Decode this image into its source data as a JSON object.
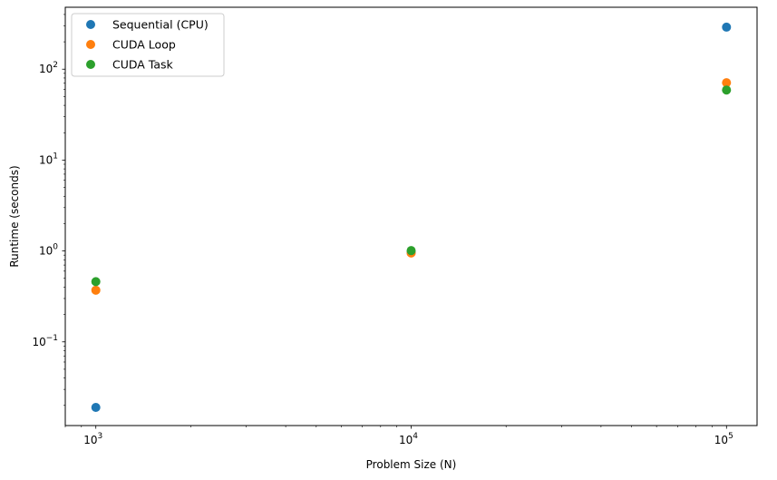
{
  "chart_data": {
    "type": "scatter",
    "title": "",
    "xlabel": "Problem Size (N)",
    "ylabel": "Runtime (seconds)",
    "xscale": "log",
    "yscale": "log",
    "xlim": [
      800,
      125000
    ],
    "ylim": [
      0.012,
      480
    ],
    "x_ticks": [
      {
        "value": 1000,
        "base": "10",
        "exp": "3"
      },
      {
        "value": 10000,
        "base": "10",
        "exp": "4"
      },
      {
        "value": 100000,
        "base": "10",
        "exp": "5"
      }
    ],
    "y_ticks": [
      {
        "value": 0.1,
        "base": "10",
        "exp": "−1"
      },
      {
        "value": 1,
        "base": "10",
        "exp": "0"
      },
      {
        "value": 10,
        "base": "10",
        "exp": "1"
      },
      {
        "value": 100,
        "base": "10",
        "exp": "2"
      }
    ],
    "grid": false,
    "legend_position": "top-left",
    "series": [
      {
        "name": "Sequential (CPU)",
        "color": "#1f77b4",
        "x": [
          1000,
          10000,
          100000
        ],
        "y": [
          0.019,
          0.96,
          290
        ]
      },
      {
        "name": "CUDA Loop",
        "color": "#ff7f0e",
        "x": [
          1000,
          10000,
          100000
        ],
        "y": [
          0.37,
          0.95,
          71
        ]
      },
      {
        "name": "CUDA Task",
        "color": "#2ca02c",
        "x": [
          1000,
          10000,
          100000
        ],
        "y": [
          0.46,
          1.01,
          59
        ]
      }
    ]
  }
}
